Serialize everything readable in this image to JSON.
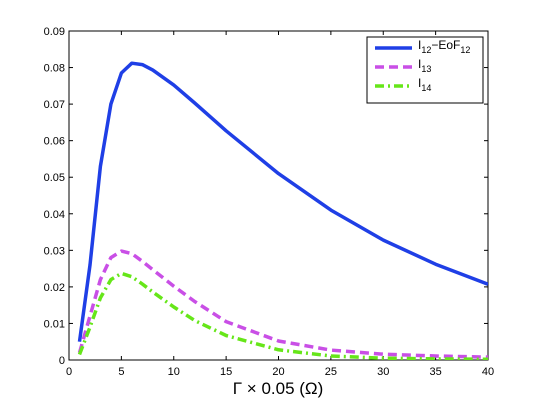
{
  "chart_data": {
    "type": "line",
    "title": "",
    "xlabel": "Γ × 0.05 (Ω)",
    "ylabel": "",
    "xlim": [
      0,
      40
    ],
    "ylim": [
      0,
      0.09
    ],
    "xticks": [
      "0",
      "5",
      "10",
      "15",
      "20",
      "25",
      "30",
      "35",
      "40"
    ],
    "yticks": [
      "0",
      "0.01",
      "0.02",
      "0.03",
      "0.04",
      "0.05",
      "0.06",
      "0.07",
      "0.08",
      "0.09"
    ],
    "grid": false,
    "legend_position": "top-right",
    "series": [
      {
        "name": "I12−EoF12",
        "name_main": "I",
        "name_sub1": "12",
        "name_mid": "−EoF",
        "name_sub2": "12",
        "color": "#1f3fe6",
        "style": "solid",
        "points": [
          [
            1,
            0.005
          ],
          [
            2,
            0.026
          ],
          [
            3,
            0.053
          ],
          [
            4,
            0.07
          ],
          [
            5,
            0.0785
          ],
          [
            6,
            0.0812
          ],
          [
            7,
            0.0808
          ],
          [
            8,
            0.0793
          ],
          [
            10,
            0.0752
          ],
          [
            12,
            0.0703
          ],
          [
            15,
            0.0627
          ],
          [
            20,
            0.051
          ],
          [
            25,
            0.041
          ],
          [
            30,
            0.0328
          ],
          [
            35,
            0.0262
          ],
          [
            40,
            0.0207
          ]
        ]
      },
      {
        "name": "I13",
        "name_main": "I",
        "name_sub1": "13",
        "color": "#c94fe6",
        "style": "dashed",
        "points": [
          [
            1,
            0.002
          ],
          [
            2,
            0.012
          ],
          [
            3,
            0.022
          ],
          [
            4,
            0.028
          ],
          [
            5,
            0.0298
          ],
          [
            6,
            0.0291
          ],
          [
            7,
            0.027
          ],
          [
            8,
            0.0247
          ],
          [
            10,
            0.0202
          ],
          [
            12,
            0.016
          ],
          [
            15,
            0.0105
          ],
          [
            20,
            0.0052
          ],
          [
            25,
            0.0027
          ],
          [
            30,
            0.0016
          ],
          [
            35,
            0.0011
          ],
          [
            40,
            0.0008
          ]
        ]
      },
      {
        "name": "I14",
        "name_main": "I",
        "name_sub1": "14",
        "color": "#66e619",
        "style": "dashdot",
        "points": [
          [
            1,
            0.0015
          ],
          [
            2,
            0.009
          ],
          [
            3,
            0.017
          ],
          [
            4,
            0.022
          ],
          [
            5,
            0.0237
          ],
          [
            6,
            0.0228
          ],
          [
            7,
            0.0208
          ],
          [
            8,
            0.0186
          ],
          [
            10,
            0.0145
          ],
          [
            12,
            0.0108
          ],
          [
            15,
            0.0067
          ],
          [
            20,
            0.0028
          ],
          [
            25,
            0.0011
          ],
          [
            30,
            0.0005
          ],
          [
            35,
            0.0003
          ],
          [
            40,
            0.0002
          ]
        ]
      }
    ]
  }
}
